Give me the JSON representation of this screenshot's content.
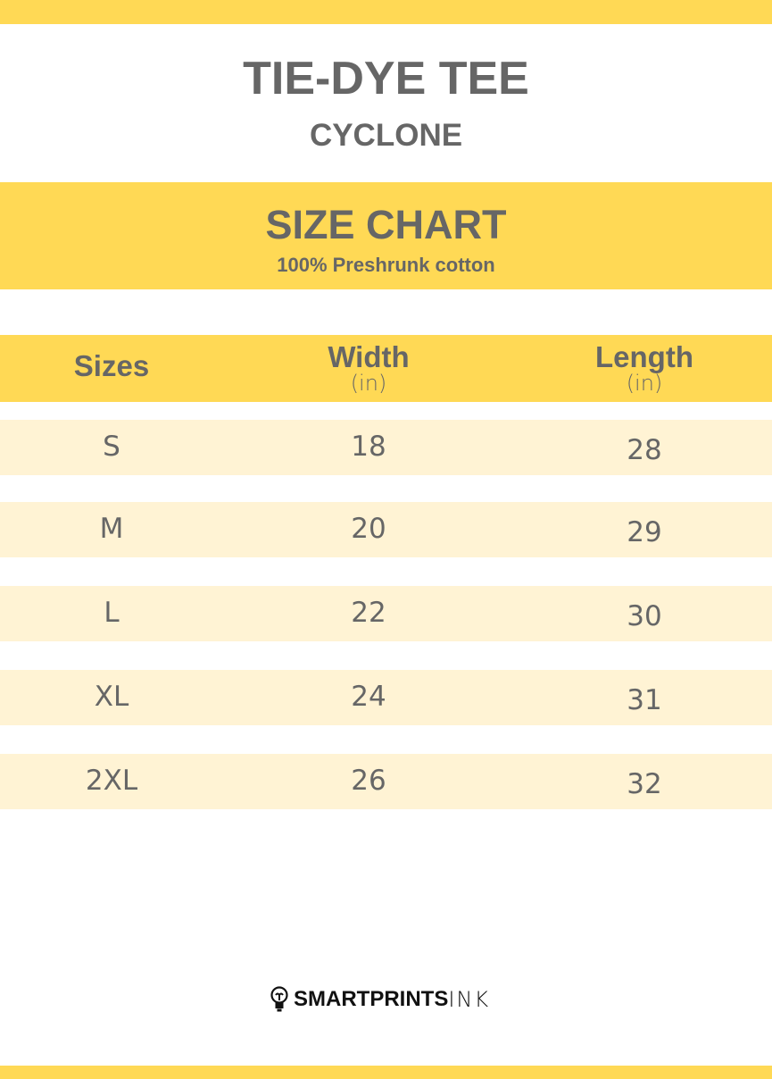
{
  "header": {
    "title": "TIE-DYE TEE",
    "subtitle": "CYCLONE"
  },
  "band": {
    "heading": "SIZE CHART",
    "material": "100% Preshrunk cotton"
  },
  "table": {
    "columns": [
      {
        "label": "Sizes",
        "unit": ""
      },
      {
        "label": "Width",
        "unit": "(in)"
      },
      {
        "label": "Length",
        "unit": "(in)"
      }
    ],
    "rows": [
      {
        "size": "S",
        "width": "18",
        "length": "28"
      },
      {
        "size": "M",
        "width": "20",
        "length": "29"
      },
      {
        "size": "L",
        "width": "22",
        "length": "30"
      },
      {
        "size": "XL",
        "width": "24",
        "length": "31"
      },
      {
        "size": "2XL",
        "width": "26",
        "length": "32"
      }
    ]
  },
  "logo": {
    "bold": "SMARTPRINTS",
    "light": "INK",
    "icon": "lightbulb-icon"
  },
  "colors": {
    "accent": "#FFD955",
    "row": "#FFF3D4",
    "text": "#666666"
  }
}
